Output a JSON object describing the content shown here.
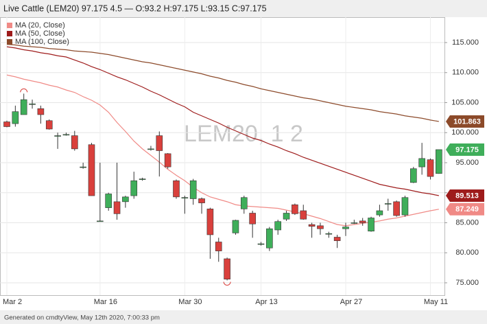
{
  "chart_data": {
    "type": "candlestick",
    "title": "Live Cattle (LEM20) 97.175 4.5 — O:93.2 H:97.175 L:93.15 C:97.175",
    "watermark": "LEM20, 1 2",
    "footer": "Generated on cmdtyView, May 12th 2020, 7:00:33 pm",
    "categories": [
      "Mar 2",
      null,
      null,
      null,
      null,
      null,
      null,
      null,
      null,
      null,
      null,
      "Mar 16",
      null,
      null,
      null,
      null,
      null,
      null,
      null,
      null,
      null,
      "Mar 30",
      null,
      null,
      null,
      null,
      null,
      null,
      null,
      null,
      "Apr 13",
      null,
      null,
      null,
      null,
      null,
      null,
      null,
      null,
      null,
      "Apr 27",
      null,
      null,
      null,
      null,
      null,
      null,
      null,
      null,
      null,
      "May 11",
      null
    ],
    "open": [
      101.8,
      101.5,
      103,
      104.8,
      104,
      102,
      99.5,
      99.7,
      99.5,
      94.3,
      98,
      85.3,
      87.5,
      88.5,
      88.5,
      89.5,
      92.3,
      97.3,
      99.5,
      96.5,
      92,
      89.2,
      89,
      89,
      87.3,
      81.8,
      79,
      83.3,
      87.3,
      86.6,
      81.5,
      80.8,
      83.8,
      85.6,
      88,
      87,
      84.7,
      84.5,
      83.2,
      82.6,
      84,
      85,
      85.3,
      83.6,
      86.3,
      88.2,
      88.5,
      86.3,
      91.7,
      94.3,
      95.5,
      93.2
    ],
    "high": [
      102,
      104.5,
      106.5,
      105.5,
      104.5,
      102.2,
      100,
      100,
      100.3,
      95,
      98.3,
      95,
      90,
      95,
      89.5,
      93.5,
      92.5,
      97.8,
      100.2,
      96.6,
      92.2,
      89.5,
      92.3,
      89.2,
      87.5,
      82.5,
      79.2,
      85.5,
      89.5,
      87,
      81.8,
      84.3,
      85.5,
      87,
      88.2,
      88,
      85,
      85,
      83.5,
      83,
      85,
      85.5,
      85.8,
      86,
      88,
      89,
      88.7,
      89.5,
      94.3,
      98.3,
      95.7,
      97.175
    ],
    "low": [
      100.9,
      101,
      103,
      104,
      101.5,
      100.5,
      97.3,
      99.5,
      97,
      94,
      89.5,
      85.2,
      87,
      85.5,
      87.5,
      89,
      92,
      97,
      92.7,
      94,
      89,
      86.5,
      88,
      86.5,
      79,
      78.5,
      75.4,
      83,
      86.5,
      82.5,
      81.2,
      80.3,
      83,
      85.3,
      86.3,
      85.5,
      82.5,
      83,
      82.5,
      80.8,
      82.8,
      84.8,
      84.5,
      83.5,
      86,
      87,
      86,
      86,
      91.6,
      93,
      92.2,
      93.15
    ],
    "close": [
      101,
      103.5,
      105.5,
      104.8,
      103,
      100.6,
      99.5,
      99.7,
      97.3,
      94.3,
      89.5,
      85.3,
      89.8,
      86.5,
      89.3,
      92,
      92.3,
      97.3,
      97,
      94.3,
      89.3,
      89.2,
      92,
      88.3,
      83,
      80.3,
      75.6,
      85.4,
      89.2,
      84.8,
      81.5,
      84,
      85.2,
      86.6,
      86.5,
      85.6,
      84.4,
      84,
      83.2,
      82,
      84.3,
      85,
      85,
      85.8,
      87,
      88.2,
      86.2,
      89.2,
      94,
      95.7,
      92.7,
      97.175
    ],
    "up_color": "#3fae5a",
    "down_color": "#d9403c",
    "series": [
      {
        "name": "MA (20, Close)",
        "color": "#f08a86",
        "values": [
          109.6,
          109.3,
          108.9,
          108.6,
          108.3,
          107.9,
          107.6,
          107.1,
          106.7,
          106.0,
          105.4,
          104.6,
          103.4,
          101.7,
          100.2,
          98.6,
          97.3,
          96.2,
          95.1,
          93.9,
          92.9,
          92.0,
          90.9,
          90.0,
          89.3,
          88.9,
          88.5,
          88.0,
          87.8,
          87.7,
          87.6,
          87.5,
          87.4,
          87.1,
          86.8,
          86.5,
          86.1,
          85.7,
          85.2,
          84.7,
          84.5,
          84.7,
          84.9,
          85.1,
          85.3,
          85.6,
          85.8,
          86.1,
          86.4,
          86.7,
          87.0,
          87.249
        ]
      },
      {
        "name": "MA (50, Close)",
        "color": "#9e1b1b",
        "values": [
          114.3,
          114.1,
          113.8,
          113.6,
          113.3,
          113.1,
          112.8,
          112.6,
          112.1,
          111.6,
          111.0,
          110.5,
          109.9,
          109.3,
          108.8,
          108.2,
          107.6,
          106.9,
          106.3,
          105.6,
          104.9,
          104.3,
          103.4,
          102.8,
          102.2,
          101.6,
          100.9,
          100.3,
          99.7,
          99.1,
          98.7,
          98.1,
          97.6,
          97.0,
          96.5,
          95.9,
          95.4,
          94.9,
          94.4,
          93.9,
          93.4,
          92.9,
          92.4,
          91.9,
          91.4,
          91.1,
          90.8,
          90.6,
          90.3,
          90.0,
          89.8,
          89.513
        ]
      },
      {
        "name": "MA (100, Close)",
        "color": "#8c4a2a",
        "values": [
          114.7,
          114.6,
          114.4,
          114.3,
          114.2,
          114.0,
          113.9,
          113.8,
          113.6,
          113.5,
          113.4,
          113.2,
          113.0,
          112.7,
          112.4,
          112.1,
          111.8,
          111.6,
          111.3,
          111.0,
          110.7,
          110.4,
          110.1,
          109.8,
          109.4,
          109.1,
          108.7,
          108.4,
          108.0,
          107.7,
          107.3,
          107.0,
          106.7,
          106.4,
          106.1,
          105.8,
          105.6,
          105.3,
          105.0,
          104.7,
          104.4,
          104.2,
          104.0,
          103.8,
          103.5,
          103.3,
          103.1,
          102.8,
          102.6,
          102.4,
          102.1,
          101.863
        ]
      }
    ],
    "ylim": [
      72.94,
      119.23
    ],
    "yticks": [
      {
        "value": 75,
        "label": "75.000"
      },
      {
        "value": 80,
        "label": "80.000"
      },
      {
        "value": 85,
        "label": "85.000"
      },
      {
        "value": 90,
        "label": "90.000"
      },
      {
        "value": 95,
        "label": "95.000"
      },
      {
        "value": 100,
        "label": "100.000"
      },
      {
        "value": 105,
        "label": "105.000"
      },
      {
        "value": 110,
        "label": "110.000"
      },
      {
        "value": 115,
        "label": "115.000"
      }
    ],
    "grid": true
  }
}
